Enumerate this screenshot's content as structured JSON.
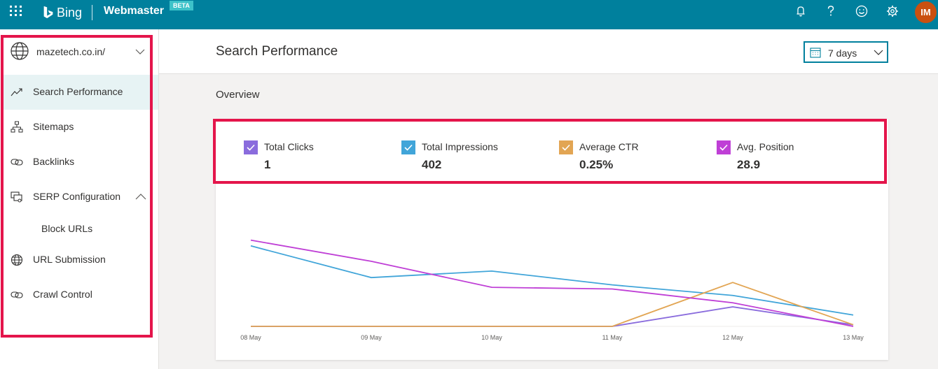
{
  "topbar": {
    "brand": "Bing",
    "product": "Webmaster",
    "badge": "BETA",
    "avatar_initials": "IM",
    "avatar_color": "#ca5010",
    "bar_color": "#00809d",
    "icons": [
      "waffle-icon",
      "bell-icon",
      "help-icon",
      "smiley-icon",
      "gear-icon"
    ]
  },
  "sidebar": {
    "site": "mazetech.co.in/",
    "items": [
      {
        "label": "Search Performance",
        "icon": "trend-icon",
        "active": true
      },
      {
        "label": "Sitemaps",
        "icon": "sitemap-icon"
      },
      {
        "label": "Backlinks",
        "icon": "link-icon"
      },
      {
        "label": "SERP Configuration",
        "icon": "serp-config-icon",
        "expanded": true
      },
      {
        "label": "Block URLs",
        "sub": true
      },
      {
        "label": "URL Submission",
        "icon": "globe-icon"
      },
      {
        "label": "Crawl Control",
        "icon": "link-icon"
      }
    ]
  },
  "header": {
    "title": "Search Performance",
    "date_range": "7 days"
  },
  "overview_label": "Overview",
  "metrics": [
    {
      "label": "Total Clicks",
      "value": "1",
      "color": "#8a6cdd"
    },
    {
      "label": "Total Impressions",
      "value": "402",
      "color": "#41a5d9"
    },
    {
      "label": "Average CTR",
      "value": "0.25%",
      "color": "#e2a553"
    },
    {
      "label": "Avg. Position",
      "value": "28.9",
      "color": "#bf3fd6"
    }
  ],
  "chart_data": {
    "type": "line",
    "categories": [
      "08 May",
      "09 May",
      "10 May",
      "11 May",
      "12 May",
      "13 May"
    ],
    "series": [
      {
        "name": "Total Clicks",
        "color": "#8a6cdd",
        "values": [
          0,
          0,
          0,
          0,
          0.24,
          0.02
        ]
      },
      {
        "name": "Total Impressions",
        "color": "#41a5d9",
        "values": [
          0.99,
          0.6,
          0.68,
          0.51,
          0.38,
          0.14
        ]
      },
      {
        "name": "Average CTR",
        "color": "#e2a553",
        "values": [
          0,
          0,
          0,
          0,
          0.54,
          0.02
        ]
      },
      {
        "name": "Avg. Position",
        "color": "#bf3fd6",
        "values": [
          1.06,
          0.8,
          0.48,
          0.46,
          0.29,
          0
        ]
      }
    ],
    "ylim": [
      0,
      1.1
    ],
    "grid": false,
    "legend": "none"
  }
}
